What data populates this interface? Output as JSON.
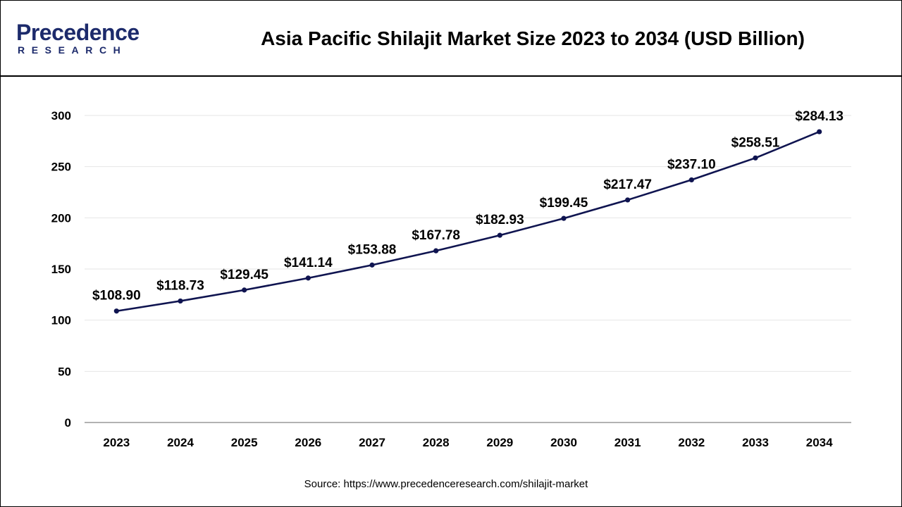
{
  "brand": {
    "name": "Precedence",
    "sub": "RESEARCH",
    "colors": {
      "navy": "#1c2a6b",
      "accent": "#1a8fd6"
    }
  },
  "source_text": "Source: https://www.precedenceresearch.com/shilajit-market",
  "chart_data": {
    "type": "line",
    "title": "Asia Pacific Shilajit Market Size 2023 to 2034 (USD Billion)",
    "xlabel": "",
    "ylabel": "",
    "categories": [
      "2023",
      "2024",
      "2025",
      "2026",
      "2027",
      "2028",
      "2029",
      "2030",
      "2031",
      "2032",
      "2033",
      "2034"
    ],
    "series": [
      {
        "values": [
          108.9,
          118.73,
          129.45,
          141.14,
          153.88,
          167.78,
          182.93,
          199.45,
          217.47,
          237.1,
          258.51,
          284.13
        ],
        "labels": [
          "$108.90",
          "$118.73",
          "$129.45",
          "$141.14",
          "$153.88",
          "$167.78",
          "$182.93",
          "$199.45",
          "$217.47",
          "$237.10",
          "$258.51",
          "$284.13"
        ],
        "color": "#0f1450"
      }
    ],
    "ylim": [
      0,
      300
    ],
    "yticks": [
      0,
      50,
      100,
      150,
      200,
      250,
      300
    ],
    "grid": true,
    "legend": "none",
    "colors": {
      "line": "#0f1450",
      "grid": "#e6e6e6",
      "axis": "#999999"
    }
  }
}
